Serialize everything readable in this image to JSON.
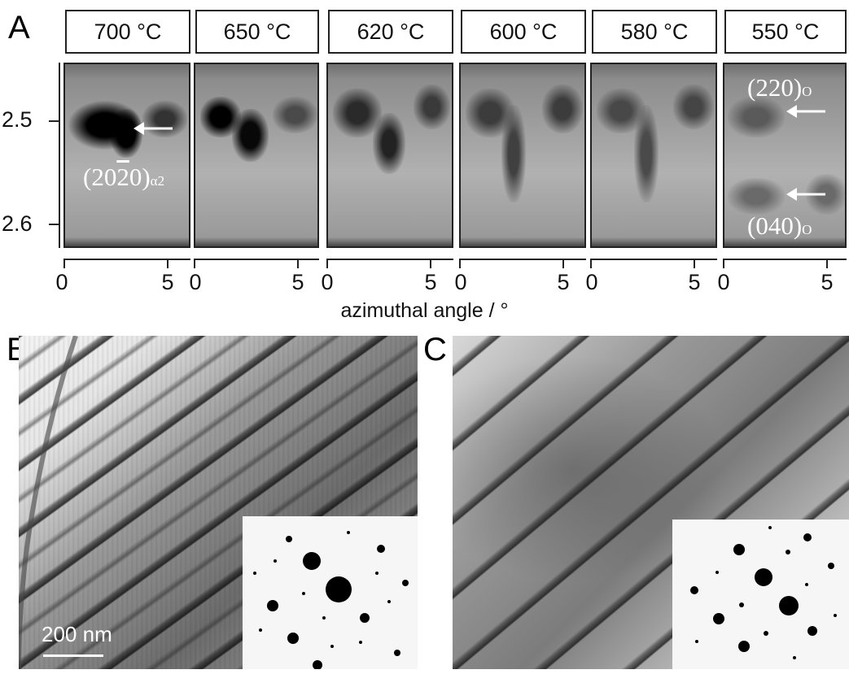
{
  "panel_a": {
    "label": "A",
    "temperatures": [
      "700 °C",
      "650 °C",
      "620 °C",
      "600 °C",
      "580 °C",
      "550 °C"
    ],
    "y_ticks": [
      "2.5",
      "2.6"
    ],
    "x_ticks": [
      "0",
      "5"
    ],
    "x_axis_title": "azimuthal angle / °",
    "annotations": {
      "alpha2_text": "(20",
      "alpha2_bar": "2",
      "alpha2_rest": "0)",
      "alpha2_sub": "α2",
      "ortho_220": "(220)",
      "ortho_220_sub": "O",
      "ortho_040": "(040)",
      "ortho_040_sub": "O"
    }
  },
  "panel_b": {
    "label": "B",
    "scale_bar": "200 nm"
  },
  "panel_c": {
    "label": "C"
  }
}
